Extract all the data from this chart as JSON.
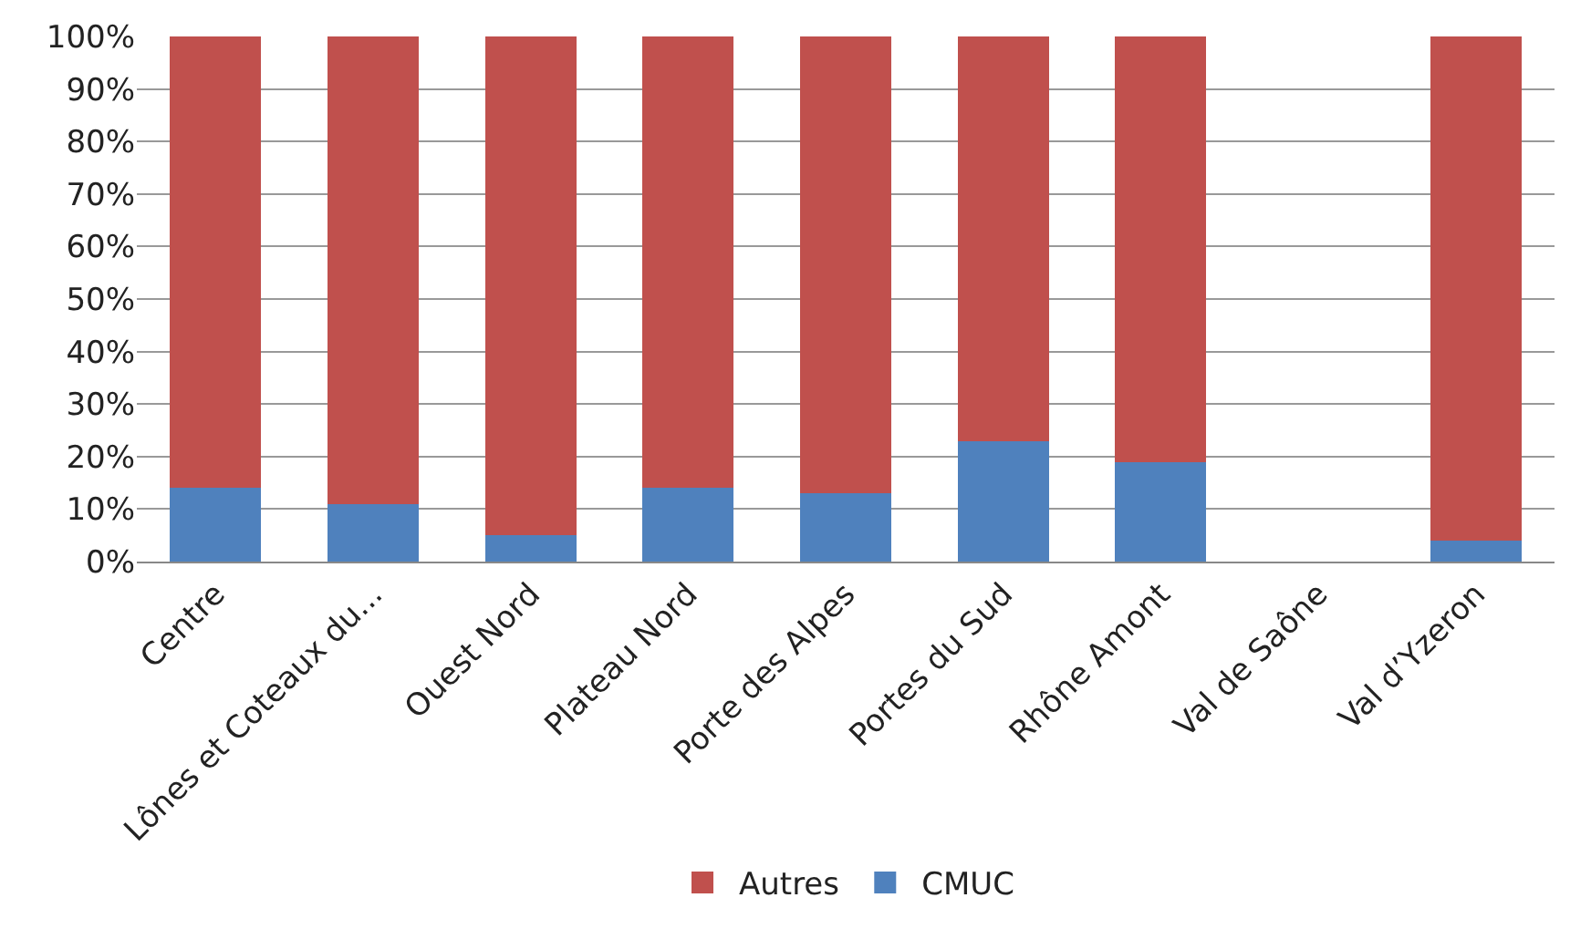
{
  "chart_data": {
    "type": "bar",
    "stacked": true,
    "categories": [
      "Centre",
      "Lônes et Coteaux du...",
      "Ouest Nord",
      "Plateau Nord",
      "Porte des Alpes",
      "Portes du Sud",
      "Rhône Amont",
      "Val de Saône",
      "Val d’Yzeron"
    ],
    "series": [
      {
        "name": "CMUC",
        "color": "#4f81bd",
        "values": [
          14,
          11,
          5,
          14,
          13,
          23,
          19,
          0,
          4
        ]
      },
      {
        "name": "Autres",
        "color": "#c0504d",
        "values": [
          86,
          89,
          95,
          86,
          87,
          77,
          81,
          0,
          96
        ]
      }
    ],
    "ylim": [
      0,
      100
    ],
    "yticks": [
      {
        "value": 0,
        "label": "0%"
      },
      {
        "value": 10,
        "label": "10%"
      },
      {
        "value": 20,
        "label": "20%"
      },
      {
        "value": 30,
        "label": "30%"
      },
      {
        "value": 40,
        "label": "40%"
      },
      {
        "value": 50,
        "label": "50%"
      },
      {
        "value": 60,
        "label": "60%"
      },
      {
        "value": 70,
        "label": "70%"
      },
      {
        "value": 80,
        "label": "80%"
      },
      {
        "value": 90,
        "label": "90%"
      },
      {
        "value": 100,
        "label": "100%"
      }
    ],
    "grid": "y",
    "legend": "bottom"
  }
}
